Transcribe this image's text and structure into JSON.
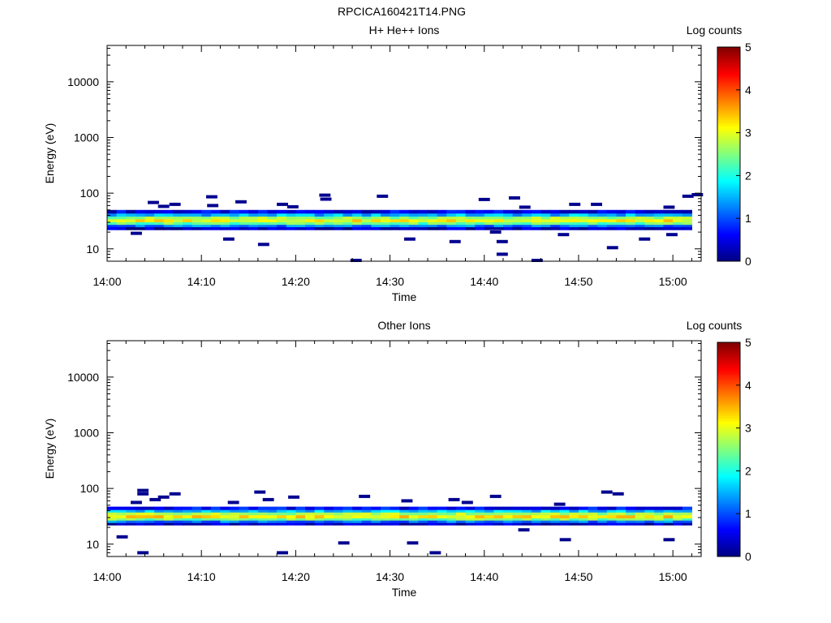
{
  "figure_title": "RPCICA160421T14.PNG",
  "chart_data": [
    {
      "type": "heatmap",
      "title": "H+ He++ Ions",
      "xlabel": "Time",
      "ylabel": "Energy (eV)",
      "x_ticks": [
        "14:00",
        "14:10",
        "14:20",
        "14:30",
        "14:40",
        "14:50",
        "15:00"
      ],
      "y_ticks": [
        "10",
        "100",
        "1000",
        "10000"
      ],
      "y_scale": "log",
      "x_range": [
        "14:00",
        "15:03"
      ],
      "y_range": [
        6,
        45000
      ],
      "colorbar": {
        "label": "Log counts",
        "ticks": [
          "0",
          "1",
          "2",
          "3",
          "4",
          "5"
        ],
        "range": [
          0,
          5
        ],
        "colormap": "jet"
      },
      "band": {
        "description_rows": [
          {
            "energy": [
              43,
              50
            ],
            "log_counts": 0.5
          },
          {
            "energy": [
              38,
              43
            ],
            "log_counts": 1.5
          },
          {
            "energy": [
              34,
              38
            ],
            "log_counts": 2.6
          },
          {
            "energy": [
              30,
              34
            ],
            "log_counts": 3.1
          },
          {
            "energy": [
              27,
              30
            ],
            "log_counts": 2.4
          },
          {
            "energy": [
              24.5,
              27
            ],
            "log_counts": 1.2
          },
          {
            "energy": [
              22,
              24.5
            ],
            "log_counts": 0.3
          }
        ]
      },
      "sparse_points": [
        {
          "t": 2.5,
          "energy": 19
        },
        {
          "t": 4.3,
          "energy": 68
        },
        {
          "t": 5.4,
          "energy": 58
        },
        {
          "t": 6.6,
          "energy": 63
        },
        {
          "t": 10.5,
          "energy": 86
        },
        {
          "t": 10.6,
          "energy": 60
        },
        {
          "t": 12.3,
          "energy": 15
        },
        {
          "t": 13.6,
          "energy": 70
        },
        {
          "t": 16.0,
          "energy": 12
        },
        {
          "t": 18.0,
          "energy": 63
        },
        {
          "t": 19.1,
          "energy": 57
        },
        {
          "t": 22.5,
          "energy": 92
        },
        {
          "t": 22.6,
          "energy": 78
        },
        {
          "t": 25.8,
          "energy": 6.2
        },
        {
          "t": 28.6,
          "energy": 88
        },
        {
          "t": 31.5,
          "energy": 15
        },
        {
          "t": 36.3,
          "energy": 13.5
        },
        {
          "t": 39.4,
          "energy": 77
        },
        {
          "t": 40.6,
          "energy": 20
        },
        {
          "t": 41.3,
          "energy": 13.5
        },
        {
          "t": 41.3,
          "energy": 8
        },
        {
          "t": 42.6,
          "energy": 82
        },
        {
          "t": 43.7,
          "energy": 56
        },
        {
          "t": 45.0,
          "energy": 6.2
        },
        {
          "t": 47.8,
          "energy": 18
        },
        {
          "t": 49.0,
          "energy": 63
        },
        {
          "t": 51.3,
          "energy": 63
        },
        {
          "t": 53.0,
          "energy": 10.5
        },
        {
          "t": 56.4,
          "energy": 15
        },
        {
          "t": 59.0,
          "energy": 56
        },
        {
          "t": 59.3,
          "energy": 18
        },
        {
          "t": 61.0,
          "energy": 88
        },
        {
          "t": 62.0,
          "energy": 94
        }
      ]
    },
    {
      "type": "heatmap",
      "title": "Other Ions",
      "xlabel": "Time",
      "ylabel": "Energy (eV)",
      "x_ticks": [
        "14:00",
        "14:10",
        "14:20",
        "14:30",
        "14:40",
        "14:50",
        "15:00"
      ],
      "y_ticks": [
        "10",
        "100",
        "1000",
        "10000"
      ],
      "y_scale": "log",
      "x_range": [
        "14:00",
        "15:03"
      ],
      "y_range": [
        6,
        45000
      ],
      "colorbar": {
        "label": "Log counts",
        "ticks": [
          "0",
          "1",
          "2",
          "3",
          "4",
          "5"
        ],
        "range": [
          0,
          5
        ],
        "colormap": "jet"
      },
      "band": {
        "description_rows": [
          {
            "energy": [
              41,
              47
            ],
            "log_counts": 0.6
          },
          {
            "energy": [
              37,
              41
            ],
            "log_counts": 1.6
          },
          {
            "energy": [
              33,
              37
            ],
            "log_counts": 2.7
          },
          {
            "energy": [
              29,
              33
            ],
            "log_counts": 3.2
          },
          {
            "energy": [
              26.5,
              29
            ],
            "log_counts": 2.5
          },
          {
            "energy": [
              24,
              26.5
            ],
            "log_counts": 1.2
          },
          {
            "energy": [
              22,
              24
            ],
            "log_counts": 0.3
          }
        ]
      },
      "sparse_points": [
        {
          "t": 1.0,
          "energy": 13.5
        },
        {
          "t": 2.5,
          "energy": 56
        },
        {
          "t": 3.2,
          "energy": 92
        },
        {
          "t": 3.2,
          "energy": 80
        },
        {
          "t": 3.2,
          "energy": 7
        },
        {
          "t": 4.5,
          "energy": 63
        },
        {
          "t": 5.4,
          "energy": 70
        },
        {
          "t": 6.6,
          "energy": 80
        },
        {
          "t": 12.8,
          "energy": 56
        },
        {
          "t": 15.6,
          "energy": 86
        },
        {
          "t": 16.5,
          "energy": 63
        },
        {
          "t": 18.0,
          "energy": 7
        },
        {
          "t": 19.2,
          "energy": 70
        },
        {
          "t": 24.5,
          "energy": 10.5
        },
        {
          "t": 26.7,
          "energy": 72
        },
        {
          "t": 31.2,
          "energy": 60
        },
        {
          "t": 31.8,
          "energy": 10.5
        },
        {
          "t": 34.2,
          "energy": 7
        },
        {
          "t": 36.2,
          "energy": 63
        },
        {
          "t": 37.6,
          "energy": 56
        },
        {
          "t": 40.6,
          "energy": 72
        },
        {
          "t": 43.6,
          "energy": 18
        },
        {
          "t": 47.4,
          "energy": 52
        },
        {
          "t": 48.0,
          "energy": 12
        },
        {
          "t": 52.4,
          "energy": 86
        },
        {
          "t": 53.6,
          "energy": 80
        },
        {
          "t": 59.0,
          "energy": 12
        }
      ]
    }
  ]
}
